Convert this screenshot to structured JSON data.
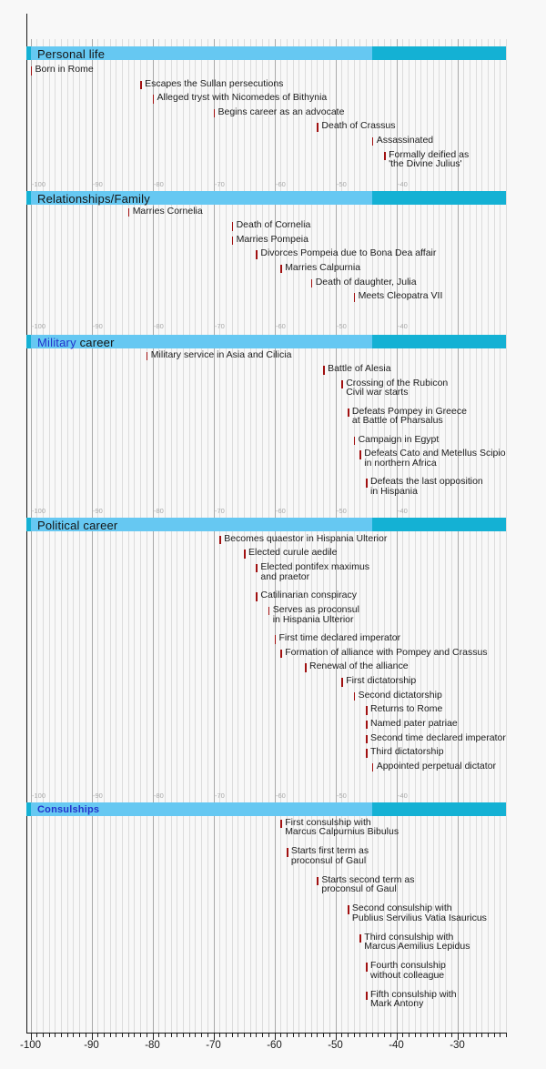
{
  "chart_data": {
    "type": "timeline",
    "subject": "Timeline of events with sections for personal life, relationships, military career, political career and consulships",
    "x_axis": {
      "domain": [
        -100,
        -22
      ],
      "major_tick_interval": 10,
      "minor_tick_interval": 1,
      "label_years": [
        -100,
        -90,
        -80,
        -70,
        -60,
        -50,
        -40,
        -30
      ],
      "labels": [
        "-100",
        "-90",
        "-80",
        "-70",
        "-60",
        "-50",
        "-40",
        "-30"
      ]
    },
    "mini_axis": {
      "label_years": [
        -100,
        -90,
        -80,
        -70,
        -60,
        -50,
        -40
      ],
      "labels": [
        "-100",
        "-90",
        "-80",
        "-70",
        "-60",
        "-50",
        "-40"
      ]
    },
    "highlight_band": {
      "light_segment_start": -100,
      "light_segment_end": -44
    },
    "colors": {
      "bar_light": "#66c8f2",
      "bar_dark": "#14b1d4",
      "event_tick": "#a01010",
      "link_text": "#2233cc",
      "gridline_minor": "#dcdcdc",
      "gridline_major": "#a9a9a9",
      "background": "#f8f8f8",
      "event_text": "#1c1c1c",
      "mini_axis_label": "#a8a8a8"
    },
    "sections": [
      {
        "id": "personal-life",
        "title_parts": [
          {
            "text": "Personal life",
            "link": false
          }
        ],
        "show_mini_axis": true,
        "small_title": false,
        "events": [
          {
            "year": -100,
            "row": 0,
            "lines": [
              "Born in Rome"
            ]
          },
          {
            "year": -82,
            "row": 1,
            "lines": [
              "Escapes the Sullan persecutions"
            ]
          },
          {
            "year": -80,
            "row": 2,
            "lines": [
              "Alleged tryst with Nicomedes of Bithynia"
            ]
          },
          {
            "year": -70,
            "row": 3,
            "lines": [
              "Begins career as an advocate"
            ]
          },
          {
            "year": -53,
            "row": 4,
            "lines": [
              "Death of Crassus"
            ]
          },
          {
            "year": -44,
            "row": 5,
            "lines": [
              "Assassinated"
            ]
          },
          {
            "year": -42,
            "row": 6,
            "lines": [
              "Formally deified as",
              "'the Divine Julius'"
            ]
          }
        ]
      },
      {
        "id": "relationships-family",
        "title_parts": [
          {
            "text": "Relationships/Family",
            "link": false
          }
        ],
        "show_mini_axis": true,
        "small_title": false,
        "events": [
          {
            "year": -84,
            "row": 0,
            "lines": [
              "Marries Cornelia"
            ]
          },
          {
            "year": -67,
            "row": 1,
            "lines": [
              "Death of Cornelia"
            ]
          },
          {
            "year": -67,
            "row": 2,
            "lines": [
              "Marries Pompeia"
            ]
          },
          {
            "year": -63,
            "row": 3,
            "lines": [
              "Divorces Pompeia due to Bona Dea affair"
            ]
          },
          {
            "year": -59,
            "row": 4,
            "lines": [
              "Marries Calpurnia"
            ]
          },
          {
            "year": -54,
            "row": 5,
            "lines": [
              "Death of daughter, Julia"
            ]
          },
          {
            "year": -47,
            "row": 6,
            "lines": [
              "Meets Cleopatra VII"
            ]
          }
        ]
      },
      {
        "id": "military-career",
        "title_parts": [
          {
            "text": "Military",
            "link": true
          },
          {
            "text": " career",
            "link": false
          }
        ],
        "show_mini_axis": true,
        "small_title": false,
        "events": [
          {
            "year": -81,
            "row": 0,
            "lines": [
              "Military service in Asia and Cilicia"
            ]
          },
          {
            "year": -52,
            "row": 1,
            "lines": [
              "Battle of Alesia"
            ]
          },
          {
            "year": -49,
            "row": 2,
            "lines": [
              "Crossing of the Rubicon",
              "Civil war starts"
            ]
          },
          {
            "year": -48,
            "row": 4,
            "lines": [
              "Defeats Pompey in Greece",
              "at Battle of Pharsalus"
            ]
          },
          {
            "year": -47,
            "row": 6,
            "lines": [
              "Campaign in Egypt"
            ]
          },
          {
            "year": -46,
            "row": 7,
            "lines": [
              "Defeats Cato and Metellus Scipio",
              "in northern Africa"
            ]
          },
          {
            "year": -45,
            "row": 9,
            "lines": [
              "Defeats the last opposition",
              "in Hispania"
            ]
          }
        ]
      },
      {
        "id": "political-career",
        "title_parts": [
          {
            "text": "Political career",
            "link": false
          }
        ],
        "show_mini_axis": true,
        "small_title": false,
        "events": [
          {
            "year": -69,
            "row": 0,
            "lines": [
              "Becomes quaestor in Hispania Ulterior"
            ]
          },
          {
            "year": -65,
            "row": 1,
            "lines": [
              "Elected curule aedile"
            ]
          },
          {
            "year": -63,
            "row": 2,
            "lines": [
              "Elected pontifex maximus",
              "and praetor"
            ]
          },
          {
            "year": -63,
            "row": 4,
            "lines": [
              "Catilinarian conspiracy"
            ]
          },
          {
            "year": -61,
            "row": 5,
            "lines": [
              "Serves as proconsul",
              "in Hispania Ulterior"
            ]
          },
          {
            "year": -60,
            "row": 7,
            "lines": [
              "First time declared imperator"
            ]
          },
          {
            "year": -59,
            "row": 8,
            "lines": [
              "Formation of alliance with Pompey and Crassus"
            ]
          },
          {
            "year": -55,
            "row": 9,
            "lines": [
              "Renewal of the alliance"
            ]
          },
          {
            "year": -49,
            "row": 10,
            "lines": [
              "First dictatorship"
            ]
          },
          {
            "year": -47,
            "row": 11,
            "lines": [
              "Second dictatorship"
            ]
          },
          {
            "year": -45,
            "row": 12,
            "lines": [
              "Returns to Rome"
            ]
          },
          {
            "year": -45,
            "row": 13,
            "lines": [
              "Named pater patriae"
            ]
          },
          {
            "year": -45,
            "row": 14,
            "lines": [
              "Second time declared imperator"
            ]
          },
          {
            "year": -45,
            "row": 15,
            "lines": [
              "Third dictatorship"
            ]
          },
          {
            "year": -44,
            "row": 16,
            "lines": [
              "Appointed perpetual dictator"
            ]
          }
        ]
      },
      {
        "id": "consulships",
        "title_parts": [
          {
            "text": "Consulships",
            "link": true
          }
        ],
        "show_mini_axis": false,
        "small_title": true,
        "events": [
          {
            "year": -59,
            "row": 0,
            "lines": [
              "First consulship with",
              "Marcus Calpurnius Bibulus"
            ]
          },
          {
            "year": -58,
            "row": 2,
            "lines": [
              "Starts first term as",
              "proconsul of Gaul"
            ]
          },
          {
            "year": -53,
            "row": 4,
            "lines": [
              "Starts second term as",
              "proconsul of Gaul"
            ]
          },
          {
            "year": -48,
            "row": 6,
            "lines": [
              "Second consulship with",
              "Publius Servilius Vatia Isauricus"
            ]
          },
          {
            "year": -46,
            "row": 8,
            "lines": [
              "Third consulship with",
              "Marcus Aemilius Lepidus"
            ]
          },
          {
            "year": -45,
            "row": 10,
            "lines": [
              "Fourth consulship",
              "without colleague"
            ]
          },
          {
            "year": -45,
            "row": 12,
            "lines": [
              "Fifth consulship with",
              "Mark Antony"
            ]
          }
        ]
      }
    ]
  }
}
